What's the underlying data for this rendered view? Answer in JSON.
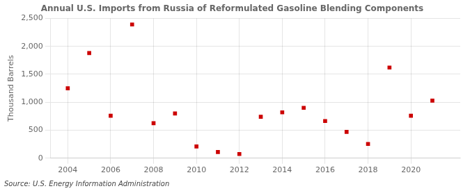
{
  "chart_data": {
    "type": "scatter",
    "title": "Annual U.S. Imports from Russia of Reformulated Gasoline Blending Components",
    "ylabel": "Thousand Barrels",
    "annotation": "Source: U.S. Energy Information Administration",
    "x": [
      2004,
      2005,
      2006,
      2007,
      2008,
      2009,
      2010,
      2011,
      2012,
      2013,
      2014,
      2015,
      2016,
      2017,
      2018,
      2019,
      2020,
      2021
    ],
    "values": [
      1250,
      1880,
      760,
      2390,
      625,
      800,
      210,
      110,
      75,
      740,
      820,
      900,
      665,
      470,
      255,
      1620,
      760,
      1030
    ],
    "color": "#cc0000",
    "marker": "square",
    "xlim": [
      2003.2,
      2022.3
    ],
    "xticks": [
      2004,
      2006,
      2008,
      2010,
      2012,
      2014,
      2016,
      2018,
      2020
    ],
    "ylim": [
      0,
      2500
    ],
    "yticks": [
      0,
      500,
      {
        "value": 1000,
        "label": "1,000"
      },
      {
        "value": 1500,
        "label": "1,500"
      },
      {
        "value": 2000,
        "label": "2,000"
      },
      {
        "value": 2500,
        "label": "2,500"
      }
    ],
    "grid": true
  }
}
